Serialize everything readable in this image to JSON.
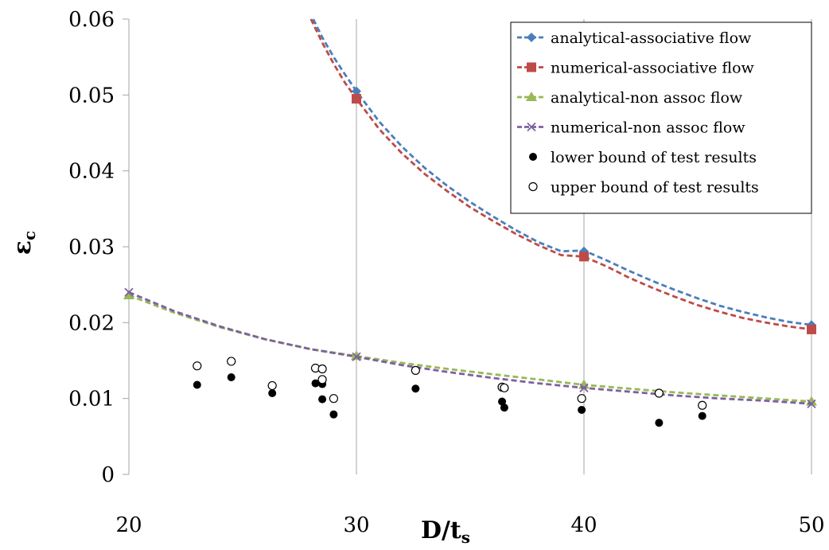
{
  "chart_data": {
    "type": "scatter",
    "xlabel": "D/t",
    "xlabel_sub": "s",
    "ylabel": "ε",
    "ylabel_sub": "c",
    "xlim": [
      20,
      50
    ],
    "ylim": [
      0,
      0.06
    ],
    "x_ticks": [
      "20",
      "30",
      "40",
      "50"
    ],
    "y_ticks": [
      "0",
      "0.01",
      "0.02",
      "0.03",
      "0.04",
      "0.05",
      "0.06"
    ],
    "grid": "vertical",
    "legend_position": "top-right",
    "series": [
      {
        "name": "analytical-associative flow",
        "kind": "dashed-line",
        "marker": "diamond",
        "color": "#4a7ebb",
        "x": [
          28.1,
          28.5,
          29,
          29.5,
          30,
          31,
          32,
          33,
          34,
          35,
          36,
          37,
          38,
          39,
          40,
          41,
          42,
          43,
          44,
          45,
          46,
          47,
          48,
          49,
          50
        ],
        "y": [
          0.06,
          0.0576,
          0.055,
          0.0527,
          0.0505,
          0.0465,
          0.0432,
          0.0404,
          0.038,
          0.0359,
          0.034,
          0.0322,
          0.0306,
          0.0294,
          0.0295,
          0.0282,
          0.0268,
          0.0255,
          0.0243,
          0.0232,
          0.0222,
          0.0214,
          0.0207,
          0.0201,
          0.0197
        ],
        "marker_x": [
          30,
          40,
          50
        ],
        "marker_y": [
          0.0505,
          0.0294,
          0.0197
        ]
      },
      {
        "name": "numerical-associative flow",
        "kind": "dashed-line",
        "marker": "square",
        "color": "#be4b48",
        "x": [
          28.0,
          28.5,
          29,
          29.5,
          30,
          31,
          32,
          33,
          34,
          35,
          36,
          37,
          38,
          39,
          40,
          41,
          42,
          43,
          44,
          45,
          46,
          47,
          48,
          49,
          50
        ],
        "y": [
          0.06,
          0.0569,
          0.0541,
          0.0516,
          0.0495,
          0.0455,
          0.0423,
          0.0396,
          0.0373,
          0.0352,
          0.0334,
          0.0317,
          0.0302,
          0.0289,
          0.0287,
          0.0274,
          0.0259,
          0.0246,
          0.0234,
          0.0223,
          0.0214,
          0.0206,
          0.02,
          0.0195,
          0.0191
        ],
        "marker_x": [
          30,
          40,
          50
        ],
        "marker_y": [
          0.0495,
          0.0287,
          0.0191
        ]
      },
      {
        "name": "analytical-non assoc flow",
        "kind": "dashed-line",
        "marker": "triangle",
        "color": "#98b954",
        "x": [
          20,
          22,
          24,
          26,
          28,
          30,
          32,
          34,
          36,
          38,
          40,
          42,
          44,
          46,
          48,
          50
        ],
        "y": [
          0.0236,
          0.0213,
          0.0194,
          0.0178,
          0.0165,
          0.0156,
          0.0147,
          0.0139,
          0.0132,
          0.0125,
          0.0118,
          0.0113,
          0.0108,
          0.0104,
          0.01,
          0.0096
        ],
        "marker_x": [
          20,
          30,
          40,
          50
        ],
        "marker_y": [
          0.0236,
          0.0156,
          0.0118,
          0.0096
        ]
      },
      {
        "name": "numerical-non assoc flow",
        "kind": "dashed-line",
        "marker": "x",
        "color": "#7d60a0",
        "x": [
          20,
          22,
          24,
          26,
          28,
          30,
          32,
          34,
          36,
          38,
          40,
          42,
          44,
          46,
          48,
          50
        ],
        "y": [
          0.024,
          0.0215,
          0.0195,
          0.0178,
          0.0165,
          0.0155,
          0.0144,
          0.0135,
          0.0127,
          0.012,
          0.0114,
          0.0109,
          0.0104,
          0.01,
          0.0097,
          0.0093
        ],
        "marker_x": [
          20,
          30,
          40,
          50
        ],
        "marker_y": [
          0.024,
          0.0155,
          0.0114,
          0.0093
        ]
      },
      {
        "name": "lower bound of test results",
        "kind": "points",
        "marker": "filled-circle",
        "color": "#000000",
        "x": [
          23.0,
          24.5,
          26.3,
          28.2,
          28.5,
          28.5,
          29.0,
          32.6,
          36.4,
          36.5,
          39.9,
          43.3,
          45.2
        ],
        "y": [
          0.0118,
          0.0128,
          0.0107,
          0.012,
          0.0119,
          0.0099,
          0.0079,
          0.0113,
          0.0096,
          0.0088,
          0.0085,
          0.0068,
          0.0077
        ]
      },
      {
        "name": "upper bound of test results",
        "kind": "points",
        "marker": "open-circle",
        "color": "#000000",
        "x": [
          23.0,
          24.5,
          26.3,
          28.2,
          28.5,
          28.5,
          29.0,
          32.6,
          36.4,
          36.5,
          39.9,
          43.3,
          45.2
        ],
        "y": [
          0.0143,
          0.0149,
          0.0117,
          0.014,
          0.0139,
          0.0125,
          0.01,
          0.0137,
          0.0115,
          0.0114,
          0.01,
          0.0107,
          0.0091
        ]
      }
    ]
  }
}
